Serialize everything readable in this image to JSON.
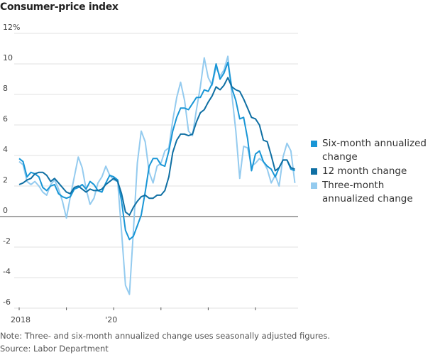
{
  "chart_data": {
    "type": "line",
    "title": "Consumer-price index",
    "xlabel": "",
    "ylabel": "",
    "ylim": [
      -6,
      12
    ],
    "yticks": [
      12,
      10,
      8,
      6,
      4,
      2,
      0,
      -2,
      -4,
      -6
    ],
    "ytick_labels": [
      "12%",
      "10",
      "8",
      "6",
      "4",
      "2",
      "0",
      "-2",
      "-4",
      "-6"
    ],
    "x_start": "2018-01",
    "x_frequency": "monthly",
    "xtick_labels": [
      {
        "label": "2018",
        "month_index": 0
      },
      {
        "label": "'20",
        "month_index": 24
      }
    ],
    "xtick_marks": [
      0,
      12,
      24,
      36,
      48,
      60
    ],
    "grid": true,
    "legend_position": "right",
    "series": [
      {
        "name": "Three-month annualized change",
        "color": "#94cbef",
        "values": [
          3.6,
          3.4,
          2.3,
          2.1,
          2.3,
          2.0,
          1.6,
          1.4,
          2.1,
          2.4,
          1.8,
          1.0,
          -0.1,
          1.3,
          2.6,
          3.9,
          3.2,
          1.8,
          0.8,
          1.2,
          2.2,
          2.6,
          3.3,
          2.7,
          2.4,
          2.3,
          -1.0,
          -4.5,
          -5.1,
          -1.0,
          3.5,
          5.6,
          4.9,
          2.9,
          2.2,
          3.3,
          3.5,
          4.3,
          4.5,
          6.3,
          7.8,
          8.8,
          7.6,
          5.6,
          5.3,
          7.0,
          8.5,
          10.4,
          9.1,
          8.6,
          9.8,
          9.2,
          9.6,
          10.5,
          8.0,
          5.6,
          2.5,
          4.6,
          4.5,
          3.3,
          3.5,
          3.8,
          3.6,
          3.1,
          2.2,
          2.7,
          2.0,
          3.9,
          4.8,
          4.3,
          2.2
        ]
      },
      {
        "name": "Six-month annualized change",
        "color": "#1996d6",
        "values": [
          3.8,
          3.6,
          2.6,
          2.9,
          2.8,
          2.6,
          1.9,
          1.7,
          2.0,
          2.1,
          1.5,
          1.3,
          1.2,
          1.3,
          1.8,
          1.9,
          2.1,
          1.8,
          2.3,
          2.1,
          1.7,
          1.6,
          2.2,
          2.7,
          2.6,
          2.4,
          1.0,
          -0.9,
          -1.5,
          -1.3,
          -0.6,
          0.1,
          1.6,
          3.3,
          3.8,
          3.8,
          3.4,
          3.3,
          4.3,
          5.6,
          6.5,
          7.1,
          7.1,
          7.0,
          7.4,
          7.8,
          7.8,
          8.3,
          8.2,
          8.7,
          10.0,
          9.0,
          9.4,
          10.1,
          8.4,
          7.6,
          6.4,
          6.5,
          5.1,
          3.0,
          4.1,
          4.3,
          3.6,
          3.3,
          3.1,
          2.6,
          3.2,
          3.7,
          3.7,
          3.1,
          3.0
        ]
      },
      {
        "name": "12 month change",
        "color": "#0f6fa3",
        "values": [
          2.1,
          2.2,
          2.4,
          2.5,
          2.8,
          2.9,
          2.9,
          2.7,
          2.3,
          2.5,
          2.2,
          1.9,
          1.6,
          1.5,
          1.9,
          2.0,
          1.8,
          1.6,
          1.8,
          1.7,
          1.7,
          1.8,
          2.1,
          2.3,
          2.5,
          2.3,
          1.5,
          0.3,
          0.1,
          0.6,
          1.0,
          1.3,
          1.4,
          1.2,
          1.2,
          1.4,
          1.4,
          1.7,
          2.6,
          4.2,
          5.0,
          5.4,
          5.4,
          5.3,
          5.4,
          6.2,
          6.8,
          7.0,
          7.5,
          7.9,
          8.5,
          8.3,
          8.6,
          9.1,
          8.5,
          8.3,
          8.2,
          7.7,
          7.1,
          6.5,
          6.4,
          6.0,
          5.0,
          4.9,
          4.0,
          3.0,
          3.2,
          3.7,
          3.7,
          3.2,
          3.1
        ]
      }
    ],
    "legend": [
      {
        "label": "Six-month annualized change",
        "color": "#1996d6"
      },
      {
        "label": "12 month change",
        "color": "#0f6fa3"
      },
      {
        "label": "Three-month annualized change",
        "color": "#94cbef"
      }
    ]
  },
  "footer": {
    "note": "Note: Three- and six-month annualized change uses seasonally adjusted figures.",
    "source": "Source: Labor Department"
  }
}
